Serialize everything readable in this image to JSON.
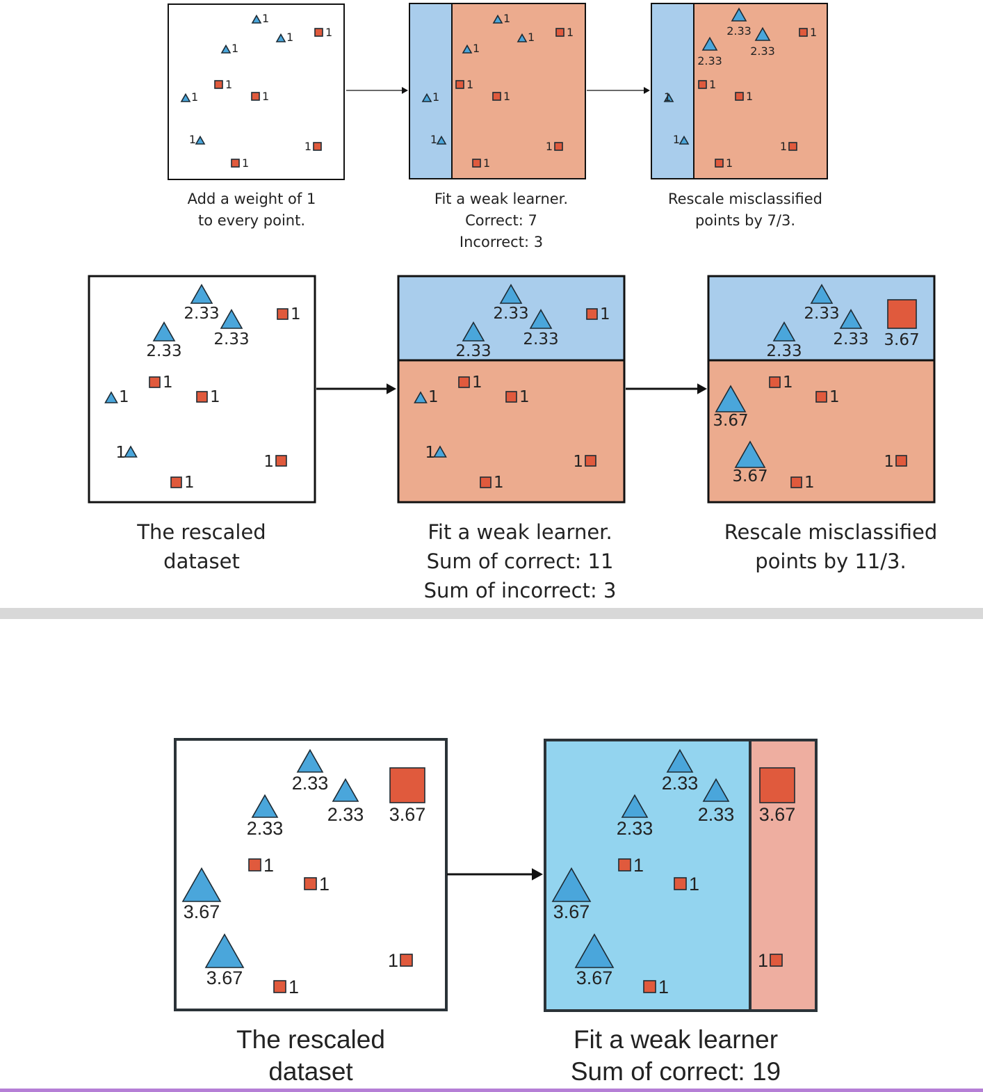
{
  "colors": {
    "triangle_fill": "#4aa6db",
    "square_fill": "#e05a3d",
    "region_blue": "#a9cdec",
    "region_orange": "#ecab8e",
    "region_blue_bottom": "#93d4ef",
    "region_pink_bottom": "#eeaea0",
    "divider": "#d8d8d8",
    "bottom_line": "#b57fd6"
  },
  "icons": {
    "triangle": "triangle-icon",
    "square": "square-icon",
    "arrow": "arrow-right-icon"
  },
  "rows": [
    {
      "panels": [
        {
          "caption": [
            "Add a weight of 1",
            "to every point."
          ],
          "points": [
            {
              "shape": "triangle",
              "label": "1"
            },
            {
              "shape": "triangle",
              "label": "1"
            },
            {
              "shape": "triangle",
              "label": "1"
            },
            {
              "shape": "square",
              "label": "1"
            },
            {
              "shape": "square",
              "label": "1"
            },
            {
              "shape": "triangle",
              "label": "1"
            },
            {
              "shape": "square",
              "label": "1"
            },
            {
              "shape": "triangle",
              "label": "1"
            },
            {
              "shape": "square",
              "label": "1"
            },
            {
              "shape": "square",
              "label": "1"
            }
          ]
        },
        {
          "caption": [
            "Fit a weak learner.",
            "Correct: 7",
            "Incorrect: 3"
          ],
          "points": [
            {
              "shape": "triangle",
              "label": "1"
            },
            {
              "shape": "triangle",
              "label": "1"
            },
            {
              "shape": "triangle",
              "label": "1"
            },
            {
              "shape": "square",
              "label": "1"
            },
            {
              "shape": "square",
              "label": "1"
            },
            {
              "shape": "triangle",
              "label": "1"
            },
            {
              "shape": "square",
              "label": "1"
            },
            {
              "shape": "triangle",
              "label": "1"
            },
            {
              "shape": "square",
              "label": "1"
            },
            {
              "shape": "square",
              "label": "1"
            }
          ]
        },
        {
          "caption": [
            "Rescale misclassified",
            "points by 7/3."
          ],
          "points": [
            {
              "shape": "triangle",
              "label": "2.33"
            },
            {
              "shape": "triangle",
              "label": "2.33"
            },
            {
              "shape": "triangle",
              "label": "2.33"
            },
            {
              "shape": "square",
              "label": "1"
            },
            {
              "shape": "square",
              "label": "1"
            },
            {
              "shape": "triangle",
              "label": "1"
            },
            {
              "shape": "square",
              "label": "1"
            },
            {
              "shape": "triangle",
              "label": "1"
            },
            {
              "shape": "square",
              "label": "1"
            },
            {
              "shape": "square",
              "label": "1"
            }
          ]
        }
      ]
    },
    {
      "panels": [
        {
          "caption": [
            "The rescaled",
            "dataset"
          ],
          "points": [
            {
              "shape": "triangle",
              "label": "2.33"
            },
            {
              "shape": "triangle",
              "label": "2.33"
            },
            {
              "shape": "triangle",
              "label": "2.33"
            },
            {
              "shape": "square",
              "label": "1"
            },
            {
              "shape": "square",
              "label": "1"
            },
            {
              "shape": "triangle",
              "label": "1"
            },
            {
              "shape": "square",
              "label": "1"
            },
            {
              "shape": "triangle",
              "label": "1"
            },
            {
              "shape": "square",
              "label": "1"
            },
            {
              "shape": "square",
              "label": "1"
            }
          ]
        },
        {
          "caption": [
            "Fit a weak learner.",
            "Sum of correct: 11",
            "Sum of incorrect: 3"
          ],
          "points": [
            {
              "shape": "triangle",
              "label": "2.33"
            },
            {
              "shape": "triangle",
              "label": "2.33"
            },
            {
              "shape": "triangle",
              "label": "2.33"
            },
            {
              "shape": "square",
              "label": "1"
            },
            {
              "shape": "square",
              "label": "1"
            },
            {
              "shape": "triangle",
              "label": "1"
            },
            {
              "shape": "square",
              "label": "1"
            },
            {
              "shape": "triangle",
              "label": "1"
            },
            {
              "shape": "square",
              "label": "1"
            },
            {
              "shape": "square",
              "label": "1"
            }
          ]
        },
        {
          "caption": [
            "Rescale misclassified",
            "points by 11/3."
          ],
          "points": [
            {
              "shape": "triangle",
              "label": "2.33"
            },
            {
              "shape": "triangle",
              "label": "2.33"
            },
            {
              "shape": "triangle",
              "label": "2.33"
            },
            {
              "shape": "square",
              "label": "3.67"
            },
            {
              "shape": "square",
              "label": "1"
            },
            {
              "shape": "square",
              "label": "1"
            },
            {
              "shape": "triangle",
              "label": "3.67"
            },
            {
              "shape": "triangle",
              "label": "3.67"
            },
            {
              "shape": "square",
              "label": "1"
            },
            {
              "shape": "square",
              "label": "1"
            }
          ]
        }
      ]
    },
    {
      "panels": [
        {
          "caption": [
            "The rescaled",
            "dataset"
          ],
          "points": [
            {
              "shape": "triangle",
              "label": "2.33"
            },
            {
              "shape": "triangle",
              "label": "2.33"
            },
            {
              "shape": "triangle",
              "label": "2.33"
            },
            {
              "shape": "square",
              "label": "3.67"
            },
            {
              "shape": "square",
              "label": "1"
            },
            {
              "shape": "square",
              "label": "1"
            },
            {
              "shape": "triangle",
              "label": "3.67"
            },
            {
              "shape": "triangle",
              "label": "3.67"
            },
            {
              "shape": "square",
              "label": "1"
            },
            {
              "shape": "square",
              "label": "1"
            }
          ]
        },
        {
          "caption": [
            "Fit a weak learner",
            "Sum of correct: 19"
          ],
          "points": [
            {
              "shape": "triangle",
              "label": "2.33"
            },
            {
              "shape": "triangle",
              "label": "2.33"
            },
            {
              "shape": "triangle",
              "label": "2.33"
            },
            {
              "shape": "square",
              "label": "3.67"
            },
            {
              "shape": "square",
              "label": "1"
            },
            {
              "shape": "square",
              "label": "1"
            },
            {
              "shape": "triangle",
              "label": "3.67"
            },
            {
              "shape": "triangle",
              "label": "3.67"
            },
            {
              "shape": "square",
              "label": "1"
            },
            {
              "shape": "square",
              "label": "1"
            }
          ]
        }
      ]
    }
  ]
}
